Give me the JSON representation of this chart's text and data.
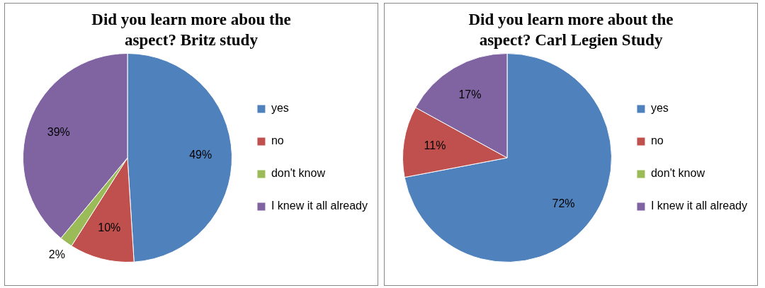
{
  "chart_data": [
    {
      "type": "pie",
      "title": "Did you learn more abou the aspect? Britz study",
      "categories": [
        "yes",
        "no",
        "don't know",
        "I knew it all already"
      ],
      "values": [
        49,
        10,
        2,
        39
      ],
      "colors": [
        "#4f81bd",
        "#c0504d",
        "#9bbb59",
        "#8064a2"
      ],
      "value_labels": [
        "49%",
        "10%",
        "2%",
        "39%"
      ],
      "legend": "right"
    },
    {
      "type": "pie",
      "title": "Did you learn more about the aspect? Carl Legien Study",
      "categories": [
        "yes",
        "no",
        "don't know",
        "I knew it all already"
      ],
      "values": [
        72,
        11,
        0,
        17
      ],
      "colors": [
        "#4f81bd",
        "#c0504d",
        "#9bbb59",
        "#8064a2"
      ],
      "value_labels": [
        "72%",
        "11%",
        null,
        "17%"
      ],
      "legend": "right"
    }
  ]
}
